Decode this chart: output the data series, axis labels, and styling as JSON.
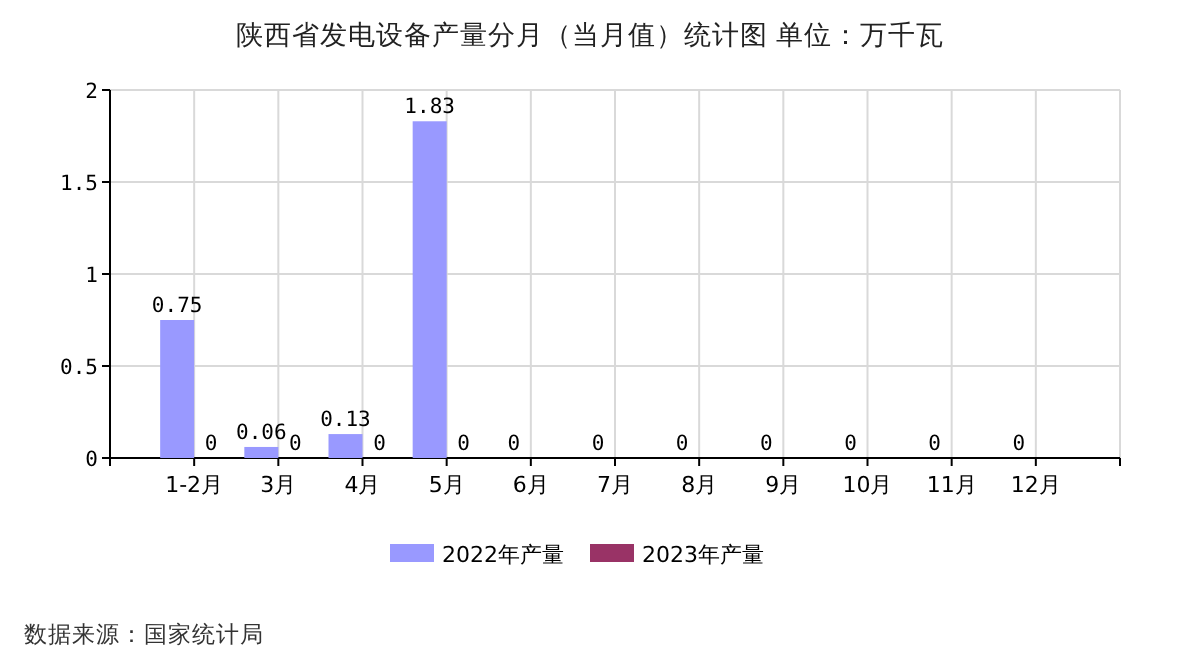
{
  "chart_data": {
    "type": "bar",
    "title": "陕西省发电设备产量分月（当月值）统计图 单位：万千瓦",
    "categories": [
      "1-2月",
      "3月",
      "4月",
      "5月",
      "6月",
      "7月",
      "8月",
      "9月",
      "10月",
      "11月",
      "12月"
    ],
    "series": [
      {
        "name": "2022年产量",
        "color": "#9999ff",
        "values": [
          0.75,
          0.06,
          0.13,
          1.83,
          0,
          0,
          0,
          0,
          0,
          0,
          0
        ]
      },
      {
        "name": "2023年产量",
        "color": "#993366",
        "values": [
          0,
          0,
          0,
          0,
          null,
          null,
          null,
          null,
          null,
          null,
          null
        ]
      }
    ],
    "ylim": [
      0,
      2
    ],
    "yticks": [
      0,
      0.5,
      1,
      1.5,
      2
    ],
    "grid": true,
    "legend": "bottom",
    "data_labels": true,
    "annotations": [
      "数据来源：国家统计局"
    ]
  }
}
